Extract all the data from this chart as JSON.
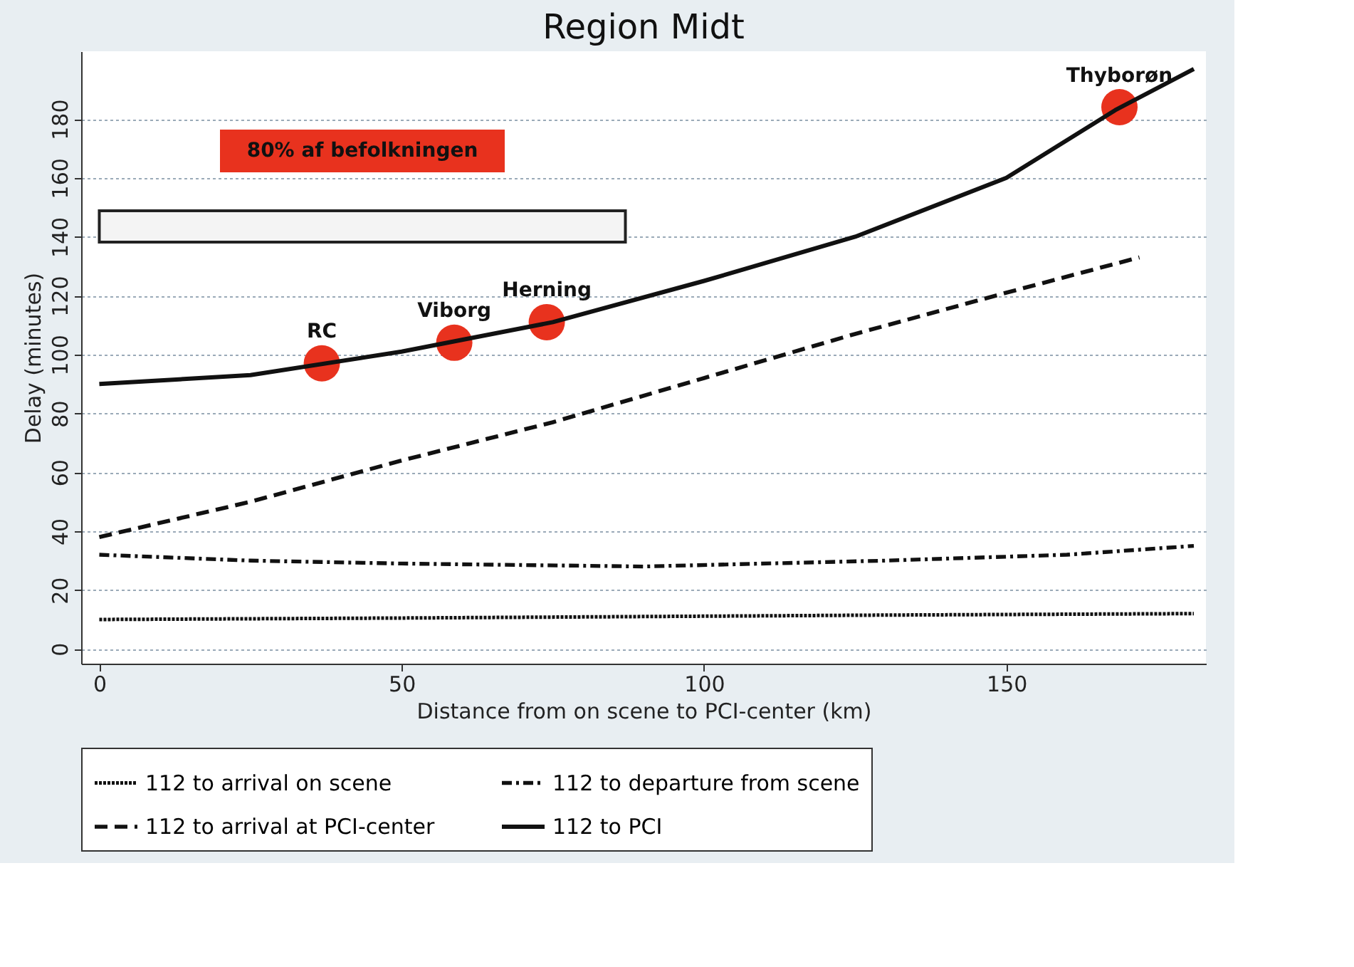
{
  "chart_data": {
    "type": "line",
    "title": "Region Midt",
    "xlabel": "Distance from on scene to PCI-center (km)",
    "ylabel": "Delay (minutes)",
    "xlim": [
      -3,
      183
    ],
    "xticks": [
      0,
      50,
      100,
      150
    ],
    "ylim": [
      -5,
      203
    ],
    "yticks": [
      0,
      20,
      40,
      60,
      80,
      100,
      120,
      140,
      160,
      180
    ],
    "grid": "y",
    "legend": "bottom",
    "series": [
      {
        "name": "112 to arrival on scene",
        "color": "#111111",
        "line_style": "dotted",
        "x": [
          0,
          50,
          90,
          130,
          181
        ],
        "values": [
          10,
          10.5,
          11,
          11.5,
          12
        ]
      },
      {
        "name": "112 to departure from scene",
        "color": "#111111",
        "line_style": "dashdot",
        "x": [
          0,
          25,
          50,
          90,
          130,
          160,
          181
        ],
        "values": [
          32,
          30,
          29,
          28,
          30,
          32,
          35
        ]
      },
      {
        "name": "112 to arrival at PCI-center",
        "color": "#111111",
        "line_style": "dashed",
        "x": [
          0,
          25,
          50,
          75,
          100,
          125,
          150,
          172
        ],
        "values": [
          38,
          50,
          64,
          77,
          92,
          107,
          121,
          133
        ]
      },
      {
        "name": "112 to PCI",
        "color": "#111111",
        "line_style": "solid",
        "x": [
          0,
          25,
          50,
          75,
          100,
          125,
          150,
          168,
          181
        ],
        "values": [
          90,
          93,
          101,
          111,
          125,
          140,
          160,
          183,
          197
        ]
      },
      {
        "type": "scatter",
        "marker": "circle",
        "color": "#e8321e",
        "x": [
          36.8,
          58.7,
          74,
          168.7
        ],
        "values": [
          97,
          104,
          111,
          184
        ]
      }
    ],
    "bands": [
      {
        "axis": "x",
        "from": 0,
        "to": 87,
        "label": "80% af befolkningen"
      }
    ],
    "annotations": [
      {
        "text": "RC",
        "x": 36.8,
        "y": 97
      },
      {
        "text": "Viborg",
        "x": 58.7,
        "y": 104
      },
      {
        "text": "Herning",
        "x": 74,
        "y": 111
      },
      {
        "text": "Thyborøn",
        "x": 168.7,
        "y": 184
      }
    ]
  }
}
